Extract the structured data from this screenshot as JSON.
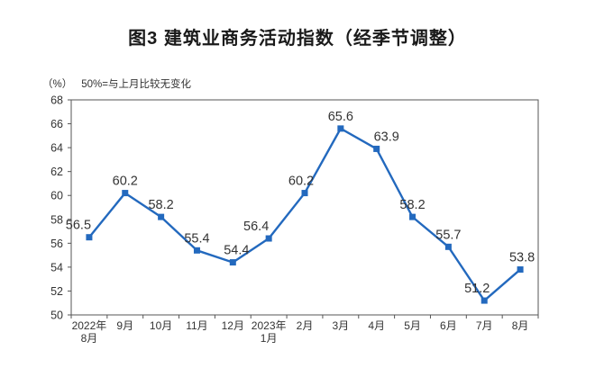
{
  "chart_data": {
    "type": "line",
    "title": "图3  建筑业商务活动指数（经季节调整）",
    "unit_label": "（%）",
    "note": "50%=与上月比较无变化",
    "categories": [
      "2022年\n8月",
      "9月",
      "10月",
      "11月",
      "12月",
      "2023年\n1月",
      "2月",
      "3月",
      "4月",
      "5月",
      "6月",
      "7月",
      "8月"
    ],
    "values": [
      56.5,
      60.2,
      58.2,
      55.4,
      54.4,
      56.4,
      60.2,
      65.6,
      63.9,
      58.2,
      55.7,
      51.2,
      53.8
    ],
    "ylim": [
      50,
      68
    ],
    "ytick_step": 2,
    "grid": false,
    "legend": "none",
    "marker": "square",
    "line_color": "#2369BE",
    "marker_color": "#2369BE",
    "axis_color": "#555555",
    "tick_label_color": "#333333",
    "data_label_color": "#333333",
    "label_offsets_x": [
      -12,
      0,
      0,
      0,
      4,
      -14,
      -4,
      0,
      11,
      0,
      0,
      -8,
      2
    ]
  }
}
